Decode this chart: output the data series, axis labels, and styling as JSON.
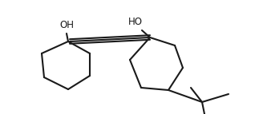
{
  "line_color": "#1a1a1a",
  "bg_color": "#ffffff",
  "line_width": 1.5,
  "figsize": [
    3.28,
    1.43
  ],
  "dpi": 100,
  "oh_label_left": "OH",
  "oh_label_right": "HO",
  "font_size": 8.5
}
